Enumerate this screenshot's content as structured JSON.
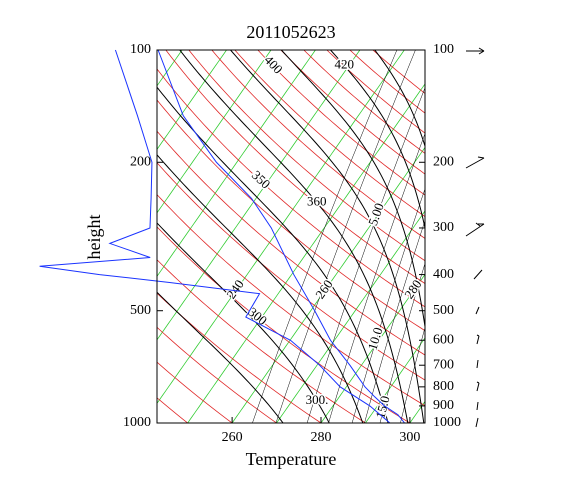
{
  "chart_data": {
    "type": "skewt",
    "title": "2011052623",
    "xlabel": "Temperature",
    "ylabel": "height",
    "xlim": [
      243.1,
      303.4
    ],
    "xticks": [
      260,
      280,
      300
    ],
    "ylim": [
      1000,
      100
    ],
    "log_y": true,
    "yticks": [
      100,
      200,
      500,
      1000
    ],
    "y2ticks": [
      100,
      200,
      300,
      400,
      500,
      600,
      700,
      800,
      900,
      1000
    ],
    "isotherms": {
      "color": "#33cc33",
      "values": [
        150,
        160,
        170,
        180,
        190,
        200,
        210,
        220,
        230,
        240,
        250,
        260,
        270,
        280,
        290,
        300
      ],
      "labels": [
        240,
        260,
        280
      ]
    },
    "dry_adiabats": {
      "color": "#e02828",
      "values": [
        250,
        260,
        270,
        280,
        290,
        300,
        310,
        320,
        330,
        340,
        350,
        360,
        370,
        380,
        390,
        400,
        410,
        420,
        430,
        440,
        450
      ],
      "labels": [
        300,
        350,
        400
      ]
    },
    "moist_adiabats": {
      "color": "#000000",
      "values": [
        280,
        300,
        320,
        340,
        360,
        380,
        400,
        420,
        440
      ],
      "labels": [
        {
          "value": 300,
          "label": "300."
        },
        360,
        420
      ]
    },
    "mixing_ratios": {
      "color": "#000000",
      "values": [
        2,
        3,
        5,
        7,
        10,
        12,
        15,
        20
      ],
      "labels": [
        {
          "value": 5,
          "label": "5.00"
        },
        {
          "value": 10,
          "label": "10.0"
        },
        {
          "value": 15,
          "label": "15.0"
        }
      ]
    },
    "series": [
      {
        "color": "#1a33ff",
        "pressure": [
          1000,
          950,
          900,
          850,
          800,
          700,
          600,
          500,
          400,
          300,
          250,
          200,
          150,
          100
        ],
        "values": [
          298.8,
          296,
          291.6,
          287.9,
          284.2,
          277.4,
          269.1,
          260.9,
          250.5,
          238.1,
          229,
          215.4,
          200.6,
          184.6
        ]
      },
      {
        "color": "#1a33ff",
        "pressure": [
          1000,
          900,
          800,
          700,
          600,
          520,
          450,
          420,
          400,
          380,
          360,
          330,
          300,
          250,
          200,
          150,
          100
        ],
        "values": [
          295.5,
          288.3,
          278.6,
          270.6,
          260.1,
          246.4,
          245.8,
          223.8,
          206.8,
          192,
          215.5,
          204.2,
          210.8,
          206.4,
          200.9,
          190.3,
          175
        ]
      }
    ]
  }
}
